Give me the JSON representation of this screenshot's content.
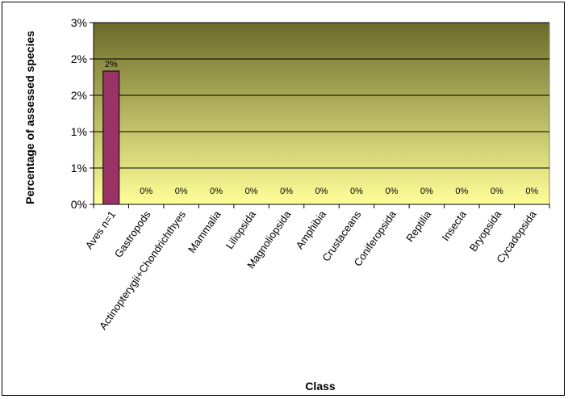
{
  "chart_data": {
    "type": "bar",
    "xlabel": "Class",
    "ylabel": "Percentage of assessed species",
    "y_tick_labels": [
      "0%",
      "1%",
      "1%",
      "2%",
      "2%",
      "3%"
    ],
    "ylim": [
      0,
      3
    ],
    "grid": true,
    "categories": [
      "Aves n=1",
      "Gastropods",
      "Actinopterygii+Chondrichthyes",
      "Mammalia",
      "Liliopsida",
      "Magnoliopsida",
      "Amphibia",
      "Crustaceans",
      "Coniferopsida",
      "Reptilia",
      "Insecta",
      "Bryopsida",
      "Cycadopsida"
    ],
    "values": [
      2.2,
      0,
      0,
      0,
      0,
      0,
      0,
      0,
      0,
      0,
      0,
      0,
      0
    ],
    "data_labels": [
      "2%",
      "0%",
      "0%",
      "0%",
      "0%",
      "0%",
      "0%",
      "0%",
      "0%",
      "0%",
      "0%",
      "0%",
      "0%"
    ],
    "bar_color": "#993366",
    "plot_gradient": [
      "#6b6b2a",
      "#ffff99"
    ]
  }
}
